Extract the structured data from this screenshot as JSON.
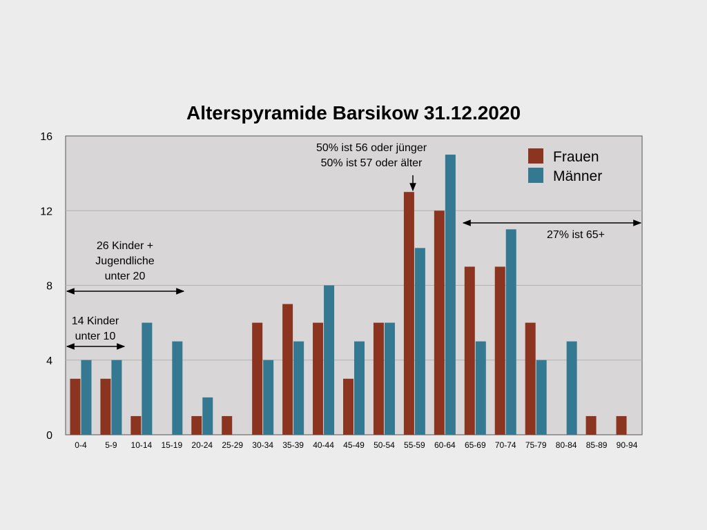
{
  "chart_data": {
    "type": "bar",
    "title": "Alterspyramide Barsikow 31.12.2020",
    "xlabel": "",
    "ylabel": "",
    "ylim": [
      0,
      16
    ],
    "yticks": [
      "0",
      "4",
      "8",
      "12",
      "16"
    ],
    "grid": true,
    "legend_position": "top-right",
    "categories": [
      "0-4",
      "5-9",
      "10-14",
      "15-19",
      "20-24",
      "25-29",
      "30-34",
      "35-39",
      "40-44",
      "45-49",
      "50-54",
      "55-59",
      "60-64",
      "65-69",
      "70-74",
      "75-79",
      "80-84",
      "85-89",
      "90-94"
    ],
    "series": [
      {
        "name": "Frauen",
        "color": "#8b3520",
        "values": [
          3,
          3,
          1,
          0,
          1,
          1,
          6,
          7,
          6,
          3,
          6,
          13,
          12,
          9,
          9,
          6,
          0,
          1,
          1
        ]
      },
      {
        "name": "Männer",
        "color": "#357891",
        "values": [
          4,
          4,
          6,
          5,
          2,
          0,
          4,
          5,
          8,
          5,
          6,
          10,
          15,
          5,
          11,
          4,
          5,
          0,
          0
        ]
      }
    ],
    "annotations": {
      "median": [
        "50% ist 56 oder jünger",
        "50% ist 57 oder älter"
      ],
      "youth": [
        "26 Kinder +",
        "Jugendliche",
        "unter 20"
      ],
      "children": [
        "14 Kinder",
        "unter 10"
      ],
      "seniors": "27% ist 65+"
    }
  }
}
